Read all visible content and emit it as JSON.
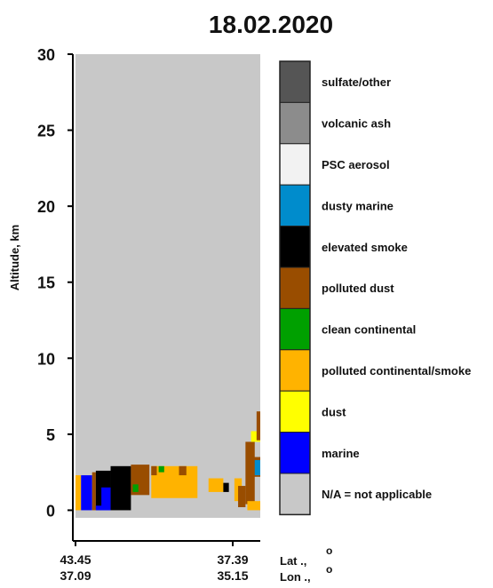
{
  "chart_data": {
    "type": "heatmap",
    "title": "18.02.2020",
    "ylabel": "Altitude, km",
    "ylim": [
      -0.5,
      30
    ],
    "yticks": [
      0,
      5,
      10,
      15,
      20,
      25,
      30
    ],
    "x_ticks": [
      {
        "lat": "43.45",
        "lon": "37.09"
      },
      {
        "lat": "37.39",
        "lon": "35.15"
      }
    ],
    "x_axis_labels": {
      "lat": "Lat",
      "lon": "Lon",
      "lat_unit": "o",
      "lon_unit": "o"
    },
    "background_class": "N/A = not applicable",
    "legend": [
      {
        "label": "sulfate/other",
        "color": "#555555"
      },
      {
        "label": "volcanic ash",
        "color": "#8c8c8c"
      },
      {
        "label": "PSC aerosol",
        "color": "#f2f2f2"
      },
      {
        "label": "dusty marine",
        "color": "#008ccc"
      },
      {
        "label": "elevated smoke",
        "color": "#000000"
      },
      {
        "label": "polluted dust",
        "color": "#994d00"
      },
      {
        "label": "clean continental",
        "color": "#00a000"
      },
      {
        "label": "polluted continental/smoke",
        "color": "#ffb300"
      },
      {
        "label": "dust",
        "color": "#ffff00"
      },
      {
        "label": "marine",
        "color": "#0000ff"
      },
      {
        "label": "N/A = not applicable",
        "color": "#c8c8c8"
      }
    ],
    "aerosol_layers": [
      {
        "x0": 0.0,
        "x1": 0.03,
        "z0": 0.0,
        "z1": 2.3,
        "class": "polluted continental/smoke"
      },
      {
        "x0": 0.03,
        "x1": 0.09,
        "z0": 0.0,
        "z1": 2.3,
        "class": "marine"
      },
      {
        "x0": 0.09,
        "x1": 0.11,
        "z0": 0.0,
        "z1": 2.5,
        "class": "polluted dust"
      },
      {
        "x0": 0.11,
        "x1": 0.19,
        "z0": 0.0,
        "z1": 2.6,
        "class": "elevated smoke"
      },
      {
        "x0": 0.11,
        "x1": 0.19,
        "z0": 0.0,
        "z1": 0.3,
        "class": "marine"
      },
      {
        "x0": 0.14,
        "x1": 0.19,
        "z0": 0.0,
        "z1": 1.5,
        "class": "marine"
      },
      {
        "x0": 0.19,
        "x1": 0.3,
        "z0": 0.0,
        "z1": 2.9,
        "class": "elevated smoke"
      },
      {
        "x0": 0.3,
        "x1": 0.4,
        "z0": 1.0,
        "z1": 3.0,
        "class": "polluted dust"
      },
      {
        "x0": 0.31,
        "x1": 0.34,
        "z0": 1.2,
        "z1": 1.7,
        "class": "clean continental"
      },
      {
        "x0": 0.41,
        "x1": 0.66,
        "z0": 0.8,
        "z1": 2.9,
        "class": "polluted continental/smoke"
      },
      {
        "x0": 0.41,
        "x1": 0.44,
        "z0": 2.3,
        "z1": 2.9,
        "class": "polluted dust"
      },
      {
        "x0": 0.45,
        "x1": 0.48,
        "z0": 2.5,
        "z1": 2.9,
        "class": "clean continental"
      },
      {
        "x0": 0.56,
        "x1": 0.6,
        "z0": 2.3,
        "z1": 2.9,
        "class": "polluted dust"
      },
      {
        "x0": 0.72,
        "x1": 0.8,
        "z0": 1.2,
        "z1": 2.1,
        "class": "polluted continental/smoke"
      },
      {
        "x0": 0.8,
        "x1": 0.83,
        "z0": 1.2,
        "z1": 1.8,
        "class": "elevated smoke"
      },
      {
        "x0": 0.86,
        "x1": 0.9,
        "z0": 0.6,
        "z1": 2.1,
        "class": "polluted continental/smoke"
      },
      {
        "x0": 0.88,
        "x1": 0.92,
        "z0": 0.2,
        "z1": 1.6,
        "class": "polluted dust"
      },
      {
        "x0": 0.92,
        "x1": 0.97,
        "z0": 0.4,
        "z1": 4.5,
        "class": "polluted dust"
      },
      {
        "x0": 0.95,
        "x1": 1.0,
        "z0": 2.2,
        "z1": 3.5,
        "class": "polluted dust"
      },
      {
        "x0": 0.97,
        "x1": 1.0,
        "z0": 2.3,
        "z1": 3.3,
        "class": "dusty marine"
      },
      {
        "x0": 0.95,
        "x1": 1.0,
        "z0": 4.5,
        "z1": 5.2,
        "class": "dust"
      },
      {
        "x0": 0.98,
        "x1": 1.0,
        "z0": 4.6,
        "z1": 6.5,
        "class": "polluted dust"
      },
      {
        "x0": 0.93,
        "x1": 1.0,
        "z0": 0.0,
        "z1": 0.6,
        "class": "polluted continental/smoke"
      }
    ]
  }
}
